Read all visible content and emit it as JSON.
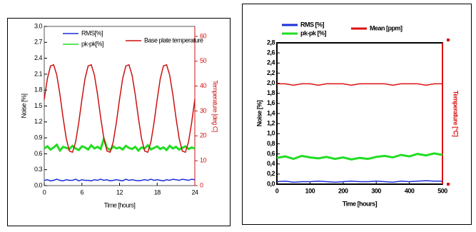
{
  "chart_data": [
    {
      "type": "line",
      "xlabel": "Time [hours]",
      "ylabel": "Noise [%]",
      "y2label": "Temperature [deg C]",
      "xlim": [
        0,
        24
      ],
      "xticks": [
        0,
        6,
        12,
        18,
        24
      ],
      "ylim": [
        0,
        3
      ],
      "yticks": [
        {
          "value": 0,
          "label": "0.0"
        },
        0.3,
        0.6,
        0.9,
        1.2,
        1.5,
        1.8,
        2.1,
        2.4,
        2.7,
        {
          "value": 3,
          "label": "3.0"
        }
      ],
      "y2lim": [
        0,
        64
      ],
      "y2ticks": [
        0,
        10,
        20,
        30,
        40,
        50,
        60
      ],
      "x": [
        0,
        0.5,
        1,
        1.5,
        2,
        2.5,
        3,
        3.5,
        4,
        4.5,
        5,
        5.5,
        6,
        6.5,
        7,
        7.5,
        8,
        8.5,
        9,
        9.5,
        10,
        10.5,
        11,
        11.5,
        12,
        12.5,
        13,
        13.5,
        14,
        14.5,
        15,
        15.5,
        16,
        16.5,
        17,
        17.5,
        18,
        18.5,
        19,
        19.5,
        20,
        20.5,
        21,
        21.5,
        22,
        22.5,
        23,
        23.5,
        24
      ],
      "series": [
        {
          "name": "RMS[%]",
          "color": "#1a2fd6",
          "values": [
            0.1,
            0.11,
            0.09,
            0.1,
            0.12,
            0.1,
            0.09,
            0.11,
            0.1,
            0.1,
            0.12,
            0.09,
            0.11,
            0.1,
            0.1,
            0.09,
            0.11,
            0.1,
            0.12,
            0.1,
            0.11,
            0.09,
            0.1,
            0.11,
            0.1,
            0.09,
            0.12,
            0.1,
            0.11,
            0.1,
            0.09,
            0.1,
            0.11,
            0.1,
            0.12,
            0.1,
            0.11,
            0.1,
            0.09,
            0.11,
            0.1,
            0.12,
            0.11,
            0.1,
            0.12,
            0.11,
            0.1,
            0.12,
            0.11
          ]
        },
        {
          "name": "pk-pk[%]",
          "color": "#22dd22",
          "values": [
            0.7,
            0.74,
            0.68,
            0.72,
            0.77,
            0.66,
            0.73,
            0.71,
            0.69,
            0.75,
            0.7,
            0.67,
            0.74,
            0.72,
            0.68,
            0.76,
            0.7,
            0.73,
            0.69,
            0.88,
            0.71,
            0.67,
            0.74,
            0.7,
            0.72,
            0.68,
            0.75,
            0.71,
            0.69,
            0.73,
            0.66,
            0.72,
            0.7,
            0.76,
            0.68,
            0.71,
            0.74,
            0.69,
            0.72,
            0.67,
            0.75,
            0.7,
            0.73,
            0.68,
            0.71,
            0.74,
            0.69,
            0.72,
            0.7
          ]
        },
        {
          "name": "Base plate temperature",
          "color": "#cc1111",
          "axis": "y2",
          "values": [
            34.7,
            43.0,
            48.1,
            48.6,
            44.4,
            36.6,
            27.3,
            19.0,
            13.9,
            13.4,
            17.6,
            25.4,
            34.7,
            43.0,
            48.1,
            48.6,
            44.4,
            36.6,
            27.3,
            19.0,
            13.9,
            13.4,
            17.6,
            25.4,
            34.7,
            43.0,
            48.1,
            48.6,
            44.4,
            36.6,
            27.3,
            19.0,
            13.9,
            13.4,
            17.6,
            25.4,
            34.7,
            43.0,
            48.1,
            48.6,
            44.4,
            36.6,
            27.3,
            19.0,
            13.9,
            13.4,
            17.6,
            25.4,
            34.7
          ]
        }
      ]
    },
    {
      "type": "line",
      "xlabel": "Time [hours]",
      "ylabel": "Noise [%]",
      "y2label": "Temperature [°C]",
      "xlim": [
        0,
        500
      ],
      "xticks": [
        0,
        100,
        200,
        300,
        400,
        500
      ],
      "ylim": [
        0,
        2.8
      ],
      "yticks": [
        {
          "value": 0,
          "label": "0,0"
        },
        {
          "value": 0.2,
          "label": "0,2"
        },
        {
          "value": 0.4,
          "label": "0,4"
        },
        {
          "value": 0.6,
          "label": "0,6"
        },
        {
          "value": 0.8,
          "label": "0,8"
        },
        {
          "value": 1,
          "label": "1,0"
        },
        {
          "value": 1.2,
          "label": "1,2"
        },
        {
          "value": 1.4,
          "label": "1,4"
        },
        {
          "value": 1.6,
          "label": "1,6"
        },
        {
          "value": 1.8,
          "label": "1,8"
        },
        {
          "value": 2,
          "label": "2,0"
        },
        {
          "value": 2.2,
          "label": "2,2"
        },
        {
          "value": 2.4,
          "label": "2,4"
        },
        {
          "value": 2.6,
          "label": "2,6"
        },
        {
          "value": 2.8,
          "label": "2,8"
        }
      ],
      "y2lim": [
        0,
        1
      ],
      "x": [
        0,
        25,
        50,
        75,
        100,
        125,
        150,
        175,
        200,
        225,
        250,
        275,
        300,
        325,
        350,
        375,
        400,
        425,
        450,
        475,
        500
      ],
      "series": [
        {
          "name": "RMS [%]",
          "color": "#1a2fd6",
          "values": [
            0.05,
            0.06,
            0.04,
            0.05,
            0.05,
            0.06,
            0.05,
            0.04,
            0.05,
            0.06,
            0.05,
            0.05,
            0.06,
            0.05,
            0.04,
            0.06,
            0.05,
            0.06,
            0.07,
            0.06,
            0.06
          ]
        },
        {
          "name": "pk-pk [%]",
          "color": "#22dd22",
          "values": [
            0.52,
            0.55,
            0.5,
            0.56,
            0.53,
            0.51,
            0.54,
            0.5,
            0.53,
            0.49,
            0.52,
            0.5,
            0.54,
            0.56,
            0.53,
            0.58,
            0.55,
            0.6,
            0.57,
            0.61,
            0.58
          ]
        },
        {
          "name": "Mean [ppm]",
          "color": "#dd1111",
          "axis": "y2",
          "values": [
            0.71,
            0.71,
            0.7,
            0.71,
            0.71,
            0.7,
            0.71,
            0.71,
            0.71,
            0.7,
            0.71,
            0.71,
            0.71,
            0.71,
            0.7,
            0.71,
            0.71,
            0.71,
            0.7,
            0.71,
            0.71
          ]
        }
      ]
    }
  ]
}
